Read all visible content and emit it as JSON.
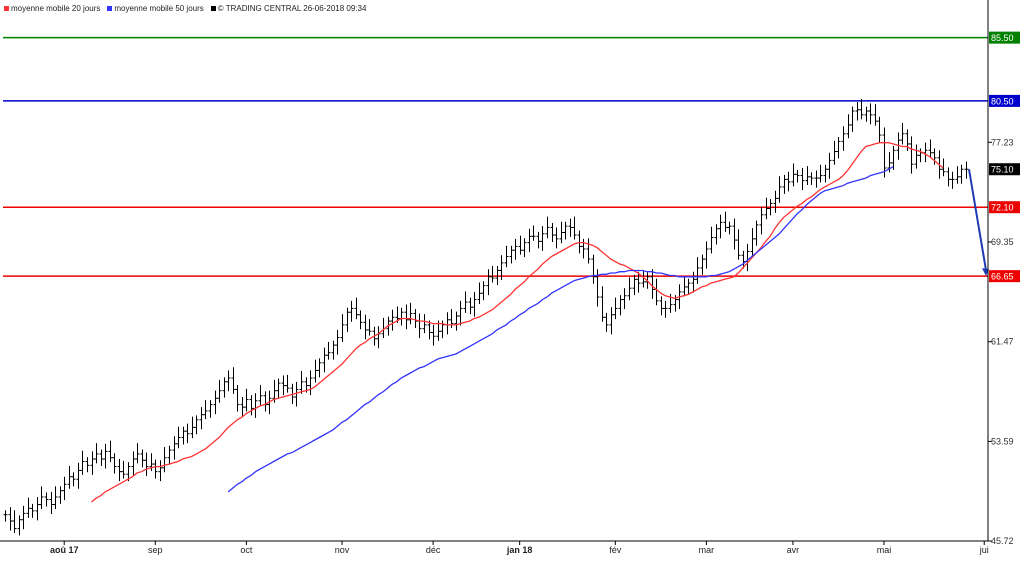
{
  "legend": {
    "ma20_label": "moyenne mobile 20 jours",
    "ma50_label": "moyenne mobile 50 jours",
    "source_label": "© TRADING CENTRAL 26-06-2018 09:34"
  },
  "colors": {
    "ma20": "#ff3333",
    "ma50": "#3333ff",
    "source": "#000000",
    "target": "#008000",
    "resistance": "#0000cc",
    "support": "#ee0000",
    "last": "#000000",
    "arrow": "#1f3bb3",
    "bars": "#000000"
  },
  "chart_data": {
    "type": "ohlc",
    "ylim": [
      45.72,
      88.0
    ],
    "y_ticks": [
      45.72,
      53.59,
      61.47,
      69.35,
      77.23
    ],
    "x_ticks": [
      {
        "label": "aoû 17",
        "bold": true,
        "index": 13
      },
      {
        "label": "sep",
        "bold": false,
        "index": 33
      },
      {
        "label": "oct",
        "bold": false,
        "index": 53
      },
      {
        "label": "nov",
        "bold": false,
        "index": 74
      },
      {
        "label": "déc",
        "bold": false,
        "index": 94
      },
      {
        "label": "jan 18",
        "bold": true,
        "index": 113
      },
      {
        "label": "fév",
        "bold": false,
        "index": 134
      },
      {
        "label": "mar",
        "bold": false,
        "index": 154
      },
      {
        "label": "avr",
        "bold": false,
        "index": 173
      },
      {
        "label": "mai",
        "bold": false,
        "index": 193
      },
      {
        "label": "jui",
        "bold": false,
        "index": 215
      }
    ],
    "levels": [
      {
        "value": 85.5,
        "label": "85.50",
        "kind": "target"
      },
      {
        "value": 80.5,
        "label": "80.50",
        "kind": "resistance"
      },
      {
        "value": 72.1,
        "label": "72.10",
        "kind": "support"
      },
      {
        "value": 66.65,
        "label": "66.65",
        "kind": "support"
      }
    ],
    "last_price": {
      "value": 75.1,
      "label": "75.10"
    },
    "projection": {
      "from": 75.1,
      "to": 66.65
    },
    "closes": [
      47.8,
      47.3,
      46.7,
      47.4,
      47.9,
      48.3,
      48.1,
      48.6,
      49.2,
      49.0,
      48.6,
      49.2,
      49.7,
      50.2,
      50.8,
      50.6,
      51.3,
      52.0,
      51.7,
      52.2,
      52.6,
      52.2,
      52.8,
      52.3,
      51.6,
      51.2,
      51.0,
      51.6,
      52.2,
      52.6,
      52.1,
      51.6,
      51.8,
      51.2,
      51.5,
      52.3,
      52.9,
      53.4,
      53.9,
      54.4,
      54.2,
      54.7,
      55.3,
      55.7,
      56.0,
      56.5,
      57.0,
      57.6,
      58.3,
      58.6,
      57.7,
      56.5,
      56.3,
      56.9,
      56.2,
      56.8,
      57.2,
      56.5,
      57.0,
      57.6,
      58.2,
      58.0,
      57.8,
      57.1,
      57.7,
      58.3,
      58.0,
      58.6,
      59.2,
      59.8,
      60.4,
      60.6,
      61.2,
      61.8,
      62.8,
      63.8,
      64.1,
      63.6,
      63.0,
      62.4,
      62.3,
      61.7,
      62.1,
      62.5,
      63.1,
      63.4,
      63.3,
      63.8,
      63.2,
      63.7,
      63.1,
      62.5,
      62.8,
      62.2,
      61.9,
      62.3,
      62.8,
      63.2,
      62.9,
      63.5,
      64.1,
      64.6,
      64.2,
      64.8,
      65.3,
      65.9,
      66.6,
      66.5,
      67.1,
      67.7,
      68.2,
      68.7,
      69.0,
      68.7,
      69.3,
      69.8,
      69.8,
      69.4,
      70.0,
      70.5,
      69.9,
      69.6,
      70.1,
      70.6,
      70.5,
      69.9,
      69.0,
      68.8,
      68.0,
      66.6,
      65.0,
      63.4,
      62.8,
      63.6,
      64.1,
      64.8,
      65.1,
      65.7,
      66.4,
      66.1,
      66.2,
      66.6,
      65.6,
      64.7,
      64.1,
      64.1,
      64.4,
      64.8,
      65.4,
      65.8,
      66.1,
      66.4,
      67.3,
      68.0,
      68.8,
      69.7,
      70.4,
      70.9,
      70.5,
      70.6,
      69.5,
      68.3,
      67.8,
      68.6,
      69.6,
      70.7,
      71.5,
      72.0,
      72.4,
      72.8,
      73.7,
      74.3,
      74.1,
      74.7,
      74.6,
      74.2,
      74.5,
      74.4,
      74.4,
      74.6,
      75.1,
      75.8,
      76.5,
      77.3,
      77.9,
      78.6,
      79.7,
      79.8,
      79.4,
      79.7,
      79.4,
      78.9,
      77.8,
      75.2,
      75.6,
      76.6,
      77.4,
      77.9,
      77.1,
      75.5,
      76.2,
      76.4,
      76.6,
      76.4,
      76.0,
      75.1,
      74.9,
      74.3,
      74.3,
      74.5,
      75.1,
      75.1
    ],
    "ma20": [
      null,
      null,
      null,
      null,
      null,
      null,
      null,
      null,
      null,
      null,
      null,
      null,
      null,
      null,
      null,
      null,
      null,
      null,
      null,
      48.8,
      49.1,
      49.3,
      49.6,
      49.8,
      50.0,
      50.2,
      50.4,
      50.6,
      50.8,
      51.1,
      51.2,
      51.4,
      51.5,
      51.6,
      51.6,
      51.7,
      51.8,
      51.9,
      52.0,
      52.2,
      52.3,
      52.4,
      52.6,
      52.8,
      53.0,
      53.3,
      53.6,
      53.9,
      54.3,
      54.7,
      55.0,
      55.3,
      55.5,
      55.8,
      56.0,
      56.2,
      56.4,
      56.5,
      56.7,
      56.9,
      57.0,
      57.1,
      57.2,
      57.3,
      57.4,
      57.5,
      57.6,
      57.7,
      57.9,
      58.2,
      58.5,
      58.8,
      59.1,
      59.4,
      59.7,
      60.1,
      60.5,
      60.9,
      61.2,
      61.4,
      61.7,
      61.9,
      62.1,
      62.4,
      62.7,
      62.9,
      63.1,
      63.3,
      63.3,
      63.3,
      63.2,
      63.1,
      63.1,
      63.0,
      62.9,
      62.9,
      62.9,
      62.8,
      62.8,
      62.8,
      62.9,
      63.0,
      63.1,
      63.3,
      63.4,
      63.6,
      63.8,
      64.0,
      64.3,
      64.6,
      64.9,
      65.2,
      65.6,
      65.9,
      66.2,
      66.6,
      66.9,
      67.2,
      67.6,
      67.9,
      68.2,
      68.4,
      68.6,
      68.8,
      69.0,
      69.2,
      69.3,
      69.3,
      69.2,
      69.1,
      68.9,
      68.6,
      68.3,
      68.0,
      67.8,
      67.6,
      67.5,
      67.3,
      67.1,
      66.9,
      66.6,
      66.3,
      65.9,
      65.6,
      65.3,
      65.1,
      65.0,
      64.9,
      65.0,
      65.1,
      65.2,
      65.4,
      65.6,
      65.8,
      65.9,
      66.1,
      66.2,
      66.3,
      66.4,
      66.5,
      66.6,
      66.9,
      67.3,
      67.7,
      68.1,
      68.5,
      68.9,
      69.4,
      69.8,
      70.4,
      70.9,
      71.3,
      71.6,
      71.9,
      72.2,
      72.4,
      72.7,
      72.9,
      73.2,
      73.5,
      73.7,
      73.9,
      74.1,
      74.3,
      74.6,
      75.0,
      75.5,
      76.0,
      76.5,
      76.9,
      77.0,
      77.1,
      77.2,
      77.2,
      77.2,
      77.1,
      77.0,
      76.9,
      76.9,
      76.7,
      76.6,
      76.5,
      76.3,
      76.1,
      75.8,
      75.5,
      75.2
    ],
    "ma50": [
      null,
      null,
      null,
      null,
      null,
      null,
      null,
      null,
      null,
      null,
      null,
      null,
      null,
      null,
      null,
      null,
      null,
      null,
      null,
      null,
      null,
      null,
      null,
      null,
      null,
      null,
      null,
      null,
      null,
      null,
      null,
      null,
      null,
      null,
      null,
      null,
      null,
      null,
      null,
      null,
      null,
      null,
      null,
      null,
      null,
      null,
      null,
      null,
      null,
      49.6,
      49.9,
      50.2,
      50.4,
      50.7,
      50.9,
      51.2,
      51.4,
      51.6,
      51.8,
      52.0,
      52.2,
      52.4,
      52.6,
      52.7,
      52.9,
      53.1,
      53.3,
      53.5,
      53.7,
      53.9,
      54.1,
      54.3,
      54.5,
      54.8,
      55.1,
      55.3,
      55.6,
      55.9,
      56.2,
      56.5,
      56.7,
      57.0,
      57.3,
      57.5,
      57.8,
      58.1,
      58.3,
      58.6,
      58.8,
      59.0,
      59.2,
      59.4,
      59.5,
      59.7,
      59.9,
      60.1,
      60.2,
      60.3,
      60.4,
      60.5,
      60.7,
      60.9,
      61.1,
      61.3,
      61.5,
      61.7,
      61.9,
      62.1,
      62.4,
      62.6,
      62.8,
      63.1,
      63.3,
      63.6,
      63.8,
      64.1,
      64.3,
      64.5,
      64.8,
      65.0,
      65.3,
      65.5,
      65.7,
      65.9,
      66.1,
      66.3,
      66.4,
      66.5,
      66.6,
      66.7,
      66.7,
      66.8,
      66.8,
      66.9,
      66.9,
      67.0,
      67.0,
      67.1,
      67.1,
      67.1,
      67.1,
      67.0,
      67.0,
      66.9,
      66.9,
      66.8,
      66.7,
      66.7,
      66.6,
      66.6,
      66.6,
      66.6,
      66.6,
      66.6,
      66.6,
      66.7,
      66.7,
      66.8,
      66.9,
      67.0,
      67.2,
      67.4,
      67.6,
      67.9,
      68.2,
      68.5,
      68.8,
      69.1,
      69.4,
      69.7,
      70.0,
      70.4,
      70.8,
      71.2,
      71.6,
      71.9,
      72.3,
      72.6,
      72.9,
      73.2,
      73.4,
      73.5,
      73.6,
      73.7,
      73.8,
      74.0,
      74.1,
      74.2,
      74.3,
      74.4,
      74.6,
      74.7,
      74.8,
      74.9,
      75.1,
      75.3
    ]
  }
}
